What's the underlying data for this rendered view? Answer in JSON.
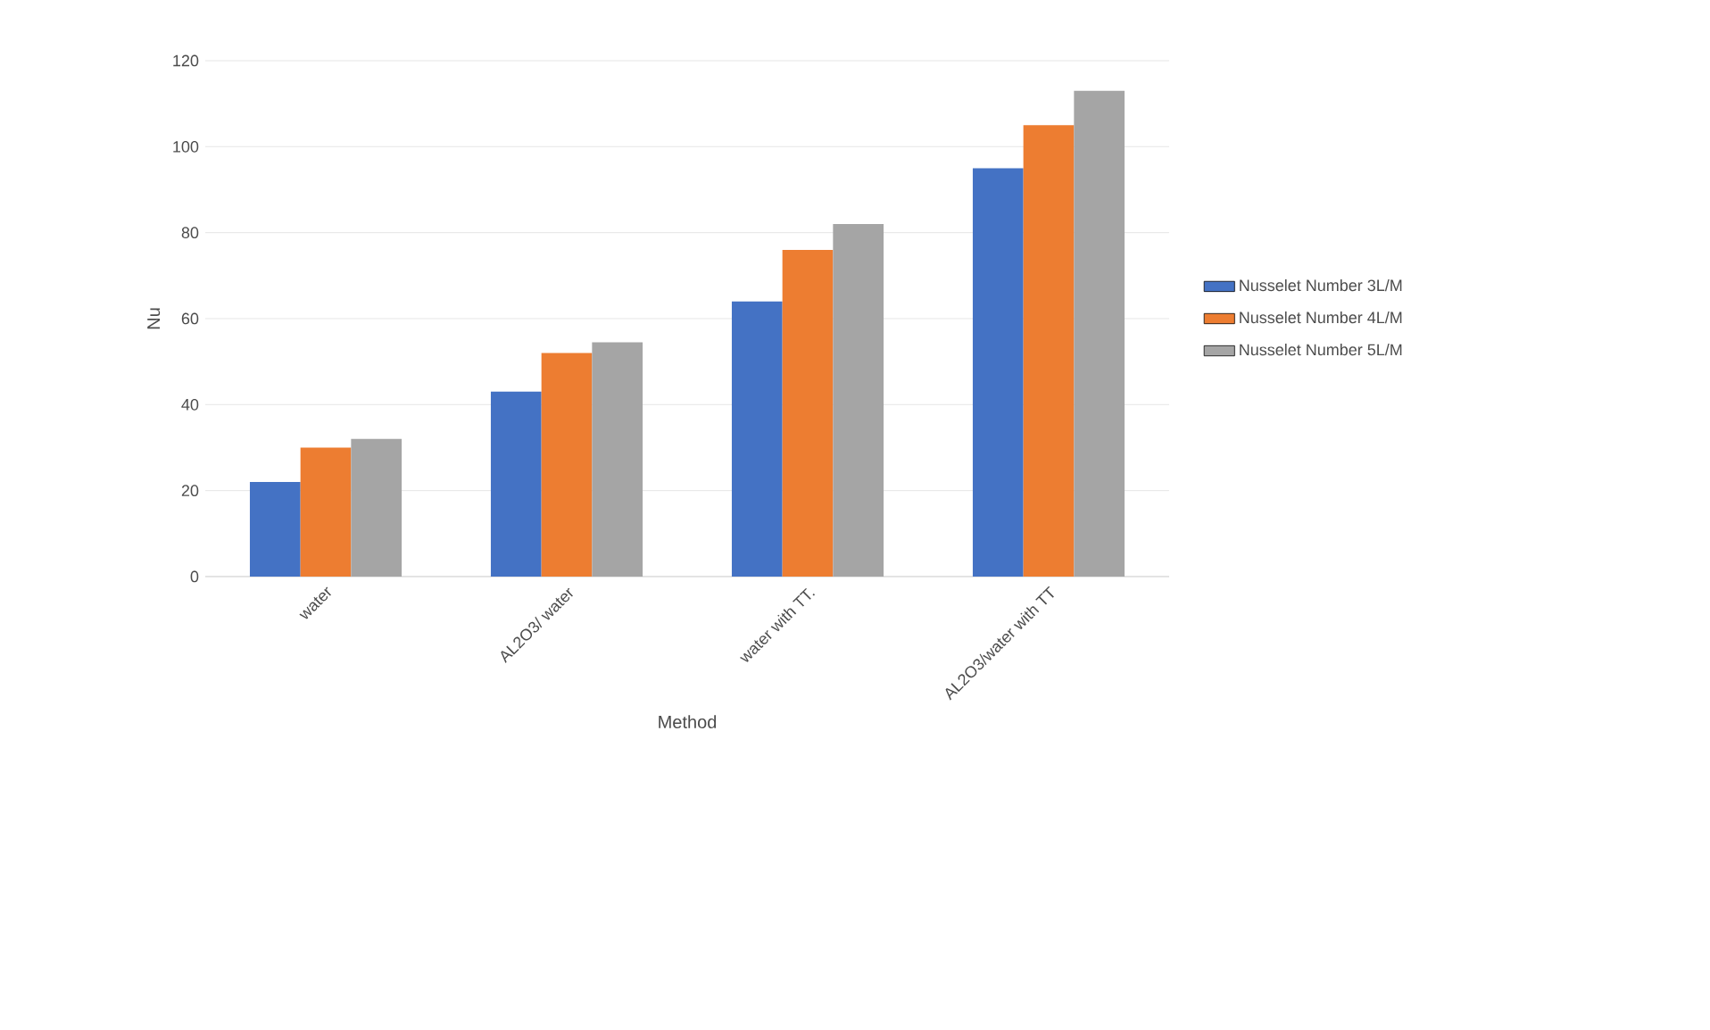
{
  "chart_data": {
    "type": "bar",
    "xlabel": "Method",
    "ylabel": "Nu",
    "categories": [
      "water",
      "AL2O3/ water",
      "water with TT.",
      "AL2O3/water with TT"
    ],
    "series": [
      {
        "name": "Nusselet Number 3L/M",
        "color": "#4472c4",
        "values": [
          22,
          43,
          64,
          95
        ]
      },
      {
        "name": "Nusselet Number 4L/M",
        "color": "#ed7d31",
        "values": [
          30,
          52,
          76,
          105
        ]
      },
      {
        "name": "Nusselet Number 5L/M",
        "color": "#a5a5a5",
        "values": [
          32,
          54.5,
          82,
          113
        ]
      }
    ],
    "ylim": [
      0,
      120
    ],
    "yticks": [
      0,
      20,
      40,
      60,
      80,
      100,
      120
    ],
    "grid": "y",
    "legend": "right"
  }
}
